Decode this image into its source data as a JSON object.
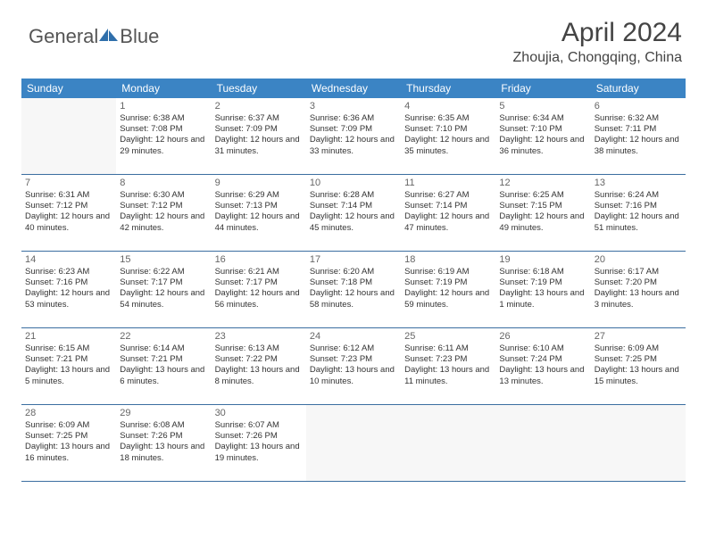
{
  "brand": {
    "left": "General",
    "right": "Blue"
  },
  "title": "April 2024",
  "location": "Zhoujia, Chongqing, China",
  "colors": {
    "header_bg": "#3b84c4",
    "header_text": "#ffffff",
    "cell_border": "#3b6ea0",
    "empty_bg": "#f7f7f7",
    "text": "#333333",
    "daynum": "#666666"
  },
  "weekdays": [
    "Sunday",
    "Monday",
    "Tuesday",
    "Wednesday",
    "Thursday",
    "Friday",
    "Saturday"
  ],
  "start_weekday_index": 1,
  "days_in_month": 30,
  "days": {
    "1": {
      "sunrise": "6:38 AM",
      "sunset": "7:08 PM",
      "daylight": "12 hours and 29 minutes."
    },
    "2": {
      "sunrise": "6:37 AM",
      "sunset": "7:09 PM",
      "daylight": "12 hours and 31 minutes."
    },
    "3": {
      "sunrise": "6:36 AM",
      "sunset": "7:09 PM",
      "daylight": "12 hours and 33 minutes."
    },
    "4": {
      "sunrise": "6:35 AM",
      "sunset": "7:10 PM",
      "daylight": "12 hours and 35 minutes."
    },
    "5": {
      "sunrise": "6:34 AM",
      "sunset": "7:10 PM",
      "daylight": "12 hours and 36 minutes."
    },
    "6": {
      "sunrise": "6:32 AM",
      "sunset": "7:11 PM",
      "daylight": "12 hours and 38 minutes."
    },
    "7": {
      "sunrise": "6:31 AM",
      "sunset": "7:12 PM",
      "daylight": "12 hours and 40 minutes."
    },
    "8": {
      "sunrise": "6:30 AM",
      "sunset": "7:12 PM",
      "daylight": "12 hours and 42 minutes."
    },
    "9": {
      "sunrise": "6:29 AM",
      "sunset": "7:13 PM",
      "daylight": "12 hours and 44 minutes."
    },
    "10": {
      "sunrise": "6:28 AM",
      "sunset": "7:14 PM",
      "daylight": "12 hours and 45 minutes."
    },
    "11": {
      "sunrise": "6:27 AM",
      "sunset": "7:14 PM",
      "daylight": "12 hours and 47 minutes."
    },
    "12": {
      "sunrise": "6:25 AM",
      "sunset": "7:15 PM",
      "daylight": "12 hours and 49 minutes."
    },
    "13": {
      "sunrise": "6:24 AM",
      "sunset": "7:16 PM",
      "daylight": "12 hours and 51 minutes."
    },
    "14": {
      "sunrise": "6:23 AM",
      "sunset": "7:16 PM",
      "daylight": "12 hours and 53 minutes."
    },
    "15": {
      "sunrise": "6:22 AM",
      "sunset": "7:17 PM",
      "daylight": "12 hours and 54 minutes."
    },
    "16": {
      "sunrise": "6:21 AM",
      "sunset": "7:17 PM",
      "daylight": "12 hours and 56 minutes."
    },
    "17": {
      "sunrise": "6:20 AM",
      "sunset": "7:18 PM",
      "daylight": "12 hours and 58 minutes."
    },
    "18": {
      "sunrise": "6:19 AM",
      "sunset": "7:19 PM",
      "daylight": "12 hours and 59 minutes."
    },
    "19": {
      "sunrise": "6:18 AM",
      "sunset": "7:19 PM",
      "daylight": "13 hours and 1 minute."
    },
    "20": {
      "sunrise": "6:17 AM",
      "sunset": "7:20 PM",
      "daylight": "13 hours and 3 minutes."
    },
    "21": {
      "sunrise": "6:15 AM",
      "sunset": "7:21 PM",
      "daylight": "13 hours and 5 minutes."
    },
    "22": {
      "sunrise": "6:14 AM",
      "sunset": "7:21 PM",
      "daylight": "13 hours and 6 minutes."
    },
    "23": {
      "sunrise": "6:13 AM",
      "sunset": "7:22 PM",
      "daylight": "13 hours and 8 minutes."
    },
    "24": {
      "sunrise": "6:12 AM",
      "sunset": "7:23 PM",
      "daylight": "13 hours and 10 minutes."
    },
    "25": {
      "sunrise": "6:11 AM",
      "sunset": "7:23 PM",
      "daylight": "13 hours and 11 minutes."
    },
    "26": {
      "sunrise": "6:10 AM",
      "sunset": "7:24 PM",
      "daylight": "13 hours and 13 minutes."
    },
    "27": {
      "sunrise": "6:09 AM",
      "sunset": "7:25 PM",
      "daylight": "13 hours and 15 minutes."
    },
    "28": {
      "sunrise": "6:09 AM",
      "sunset": "7:25 PM",
      "daylight": "13 hours and 16 minutes."
    },
    "29": {
      "sunrise": "6:08 AM",
      "sunset": "7:26 PM",
      "daylight": "13 hours and 18 minutes."
    },
    "30": {
      "sunrise": "6:07 AM",
      "sunset": "7:26 PM",
      "daylight": "13 hours and 19 minutes."
    }
  },
  "labels": {
    "sunrise_prefix": "Sunrise: ",
    "sunset_prefix": "Sunset: ",
    "daylight_prefix": "Daylight: "
  }
}
